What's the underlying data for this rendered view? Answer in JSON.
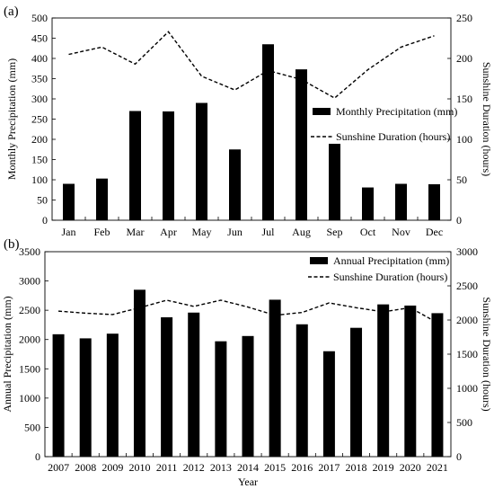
{
  "chart_data": [
    {
      "panel_label": "(a)",
      "type": "bar+line",
      "categories": [
        "Jan",
        "Feb",
        "Mar",
        "Apr",
        "May",
        "Jun",
        "Jul",
        "Aug",
        "Sep",
        "Oct",
        "Nov",
        "Dec"
      ],
      "series": [
        {
          "name": "Monthly Precipitation (mm)",
          "type": "bar",
          "axis": "left",
          "values": [
            90,
            103,
            270,
            269,
            290,
            175,
            435,
            373,
            189,
            81,
            90,
            89
          ]
        },
        {
          "name": "Sunshine Duration (hours)",
          "type": "line",
          "style": "dashed",
          "axis": "right",
          "values": [
            205,
            214,
            193,
            233,
            178,
            161,
            185,
            174,
            151,
            186,
            214,
            228
          ]
        }
      ],
      "xlabel": "",
      "ylabel": "Monthly Precipitation (mm)",
      "ylim": [
        0,
        500
      ],
      "yticks": [
        0,
        50,
        100,
        150,
        200,
        250,
        300,
        350,
        400,
        450,
        500
      ],
      "y2label": "Sunshine Duration (hours)",
      "y2lim": [
        0,
        250
      ],
      "y2ticks": [
        0,
        50,
        100,
        150,
        200,
        250
      ],
      "legend_position": "center-right",
      "grid": false
    },
    {
      "panel_label": "(b)",
      "type": "bar+line",
      "categories": [
        "2007",
        "2008",
        "2009",
        "2010",
        "2011",
        "2012",
        "2013",
        "2014",
        "2015",
        "2016",
        "2017",
        "2018",
        "2019",
        "2020",
        "2021"
      ],
      "series": [
        {
          "name": "Annual Precipitation (mm)",
          "type": "bar",
          "axis": "left",
          "values": [
            2090,
            2020,
            2100,
            2850,
            2380,
            2460,
            1970,
            2060,
            2680,
            2260,
            1800,
            2200,
            2600,
            2580,
            2450
          ]
        },
        {
          "name": "Sunshine Duration (hours)",
          "type": "line",
          "style": "dashed",
          "axis": "right",
          "values": [
            2130,
            2100,
            2080,
            2180,
            2290,
            2200,
            2290,
            2190,
            2070,
            2110,
            2250,
            2180,
            2120,
            2180,
            1960
          ]
        }
      ],
      "xlabel": "Year",
      "ylabel": "Annual Precipitation (mm)",
      "ylim": [
        0,
        3500
      ],
      "yticks": [
        0,
        500,
        1000,
        1500,
        2000,
        2500,
        3000,
        3500
      ],
      "y2label": "Sunshine Duration (hours)",
      "y2lim": [
        0,
        3000
      ],
      "y2ticks": [
        0,
        500,
        1000,
        1500,
        2000,
        2500,
        3000
      ],
      "legend_position": "top-right",
      "grid": false
    }
  ]
}
